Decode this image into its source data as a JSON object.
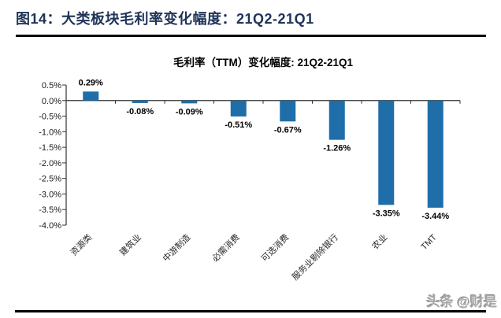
{
  "header": {
    "title": "图14：大类板块毛利率变化幅度：21Q2-21Q1"
  },
  "watermark": {
    "text": "头条 @财是"
  },
  "colors": {
    "header_title": "#203458",
    "bar": "#1F6EA9",
    "rule": "#000000",
    "axis": "#333333"
  },
  "chart_data": {
    "type": "bar",
    "title": "毛利率（TTM）变化幅度: 21Q2-21Q1",
    "categories": [
      "资源类",
      "建筑业",
      "中游制造",
      "必需消费",
      "可选消费",
      "服务业剔除银行",
      "农业",
      "TMT"
    ],
    "values": [
      0.29,
      -0.08,
      -0.09,
      -0.51,
      -0.67,
      -1.26,
      -3.35,
      -3.44
    ],
    "value_labels": [
      "0.29%",
      "-0.08%",
      "-0.09%",
      "-0.51%",
      "-0.67%",
      "-1.26%",
      "-3.35%",
      "-3.44%"
    ],
    "xlabel": "",
    "ylabel": "",
    "ylim": [
      -4.0,
      0.5
    ],
    "ytick_step": 0.5,
    "ytick_labels": [
      "0.5%",
      "0.0%",
      "-0.5%",
      "-1.0%",
      "-1.5%",
      "-2.0%",
      "-2.5%",
      "-3.0%",
      "-3.5%",
      "-4.0%"
    ],
    "bar_color": "#1F6EA9",
    "grid": false,
    "legend": "none",
    "value_label_position": "outside-end",
    "category_label_rotation_deg": -45
  }
}
